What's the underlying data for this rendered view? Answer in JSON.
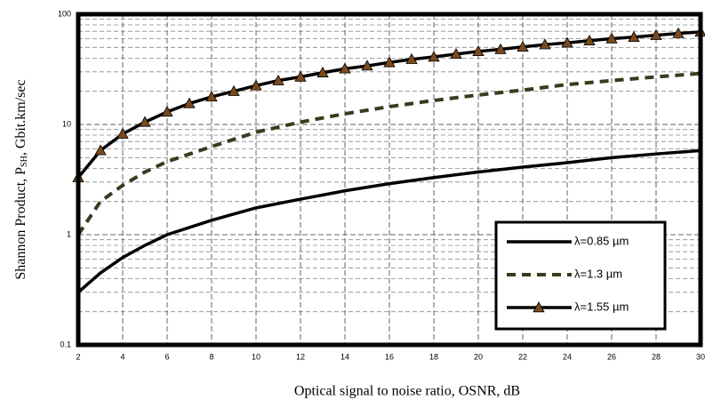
{
  "chart_data": {
    "type": "line",
    "ylabel": [
      "Shannon Product, P",
      "SH",
      ", Gbit.km/sec"
    ],
    "xlabel": "Optical signal to noise ratio, OSNR, dB",
    "log_y": true,
    "grid": true,
    "legend": "lower right",
    "xlim": [
      2,
      30
    ],
    "xticks": [
      2,
      4,
      6,
      8,
      10,
      12,
      14,
      16,
      18,
      20,
      22,
      24,
      26,
      28,
      30
    ],
    "ylim": [
      0.1,
      100
    ],
    "yticks": [
      0.1,
      1,
      10,
      100
    ],
    "series": [
      {
        "name": "λ=0.85 µm",
        "color": "#000000",
        "style": "solid",
        "x": [
          2,
          3,
          4,
          5,
          6,
          8,
          10,
          12,
          14,
          16,
          18,
          20,
          22,
          24,
          26,
          28,
          30
        ],
        "values": [
          0.3,
          0.45,
          0.62,
          0.8,
          1.0,
          1.35,
          1.75,
          2.1,
          2.5,
          2.9,
          3.3,
          3.7,
          4.1,
          4.5,
          5.0,
          5.4,
          5.8
        ]
      },
      {
        "name": "λ=1.3 µm",
        "color": "#3a3a1e",
        "style": "dashed",
        "x": [
          2,
          3,
          4,
          5,
          6,
          8,
          10,
          12,
          14,
          16,
          18,
          20,
          22,
          24,
          26,
          28,
          30
        ],
        "values": [
          1.0,
          2.0,
          2.8,
          3.7,
          4.6,
          6.3,
          8.5,
          10.5,
          12.5,
          14.5,
          16.5,
          18.5,
          20.5,
          23,
          25,
          27,
          29
        ]
      },
      {
        "name": "λ=1.55 µm",
        "color": "#000000",
        "marker_color": "#7a4a1e",
        "style": "solid",
        "marker": "triangle",
        "x": [
          2,
          3,
          4,
          5,
          6,
          7,
          8,
          9,
          10,
          11,
          12,
          13,
          14,
          15,
          16,
          17,
          18,
          19,
          20,
          21,
          22,
          23,
          24,
          25,
          26,
          27,
          28,
          29,
          30
        ],
        "values": [
          3.3,
          5.8,
          8.2,
          10.5,
          13,
          15.5,
          17.8,
          20,
          22.5,
          25,
          27,
          29.5,
          32,
          34,
          36.5,
          39,
          41,
          43.5,
          46,
          48,
          50.5,
          53,
          55,
          57.5,
          60,
          62,
          64.5,
          67,
          69
        ]
      }
    ]
  }
}
